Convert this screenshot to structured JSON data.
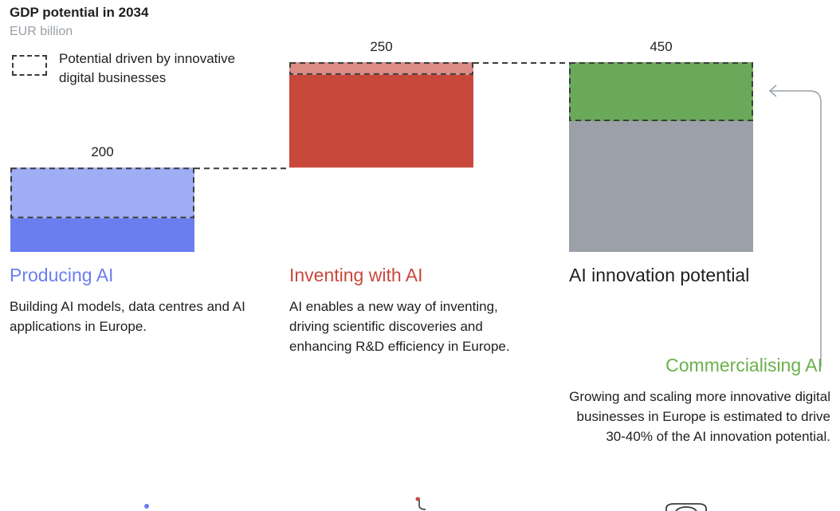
{
  "chart_data": {
    "type": "waterfall",
    "title": "GDP potential in 2034",
    "subtitle": "EUR billion",
    "legend": {
      "label": "Potential driven by innovative digital businesses",
      "style": "dashed-outline",
      "placement": "top-left"
    },
    "bars": [
      {
        "name": "Producing AI",
        "value_label": "200",
        "start": 0,
        "end": 200,
        "digital_portion": [
          80,
          200
        ],
        "color": "#6a7ef0",
        "digital_color": "#9fadf5"
      },
      {
        "name": "Inventing with AI",
        "value_label": "250",
        "start": 200,
        "end": 450,
        "digital_portion": [
          420,
          450
        ],
        "color": "#c9483c",
        "digital_color": "#dc8c84"
      },
      {
        "name": "AI innovation potential",
        "value_label": "450",
        "start": 0,
        "end": 450,
        "digital_portion": [
          310,
          450
        ],
        "color": "#9ca0a8",
        "digital_color": "#6aa95a"
      }
    ],
    "ylim": [
      0,
      450
    ]
  },
  "sections": {
    "producing": {
      "title": "Producing AI",
      "description": "Building AI models, data centres and AI applications in Europe."
    },
    "inventing": {
      "title": "Inventing with AI",
      "description": "AI enables a new way of inventing, driving scientific discoveries and enhancing R&D efficiency in Europe."
    },
    "potential": {
      "title": "AI innovation potential"
    },
    "commercialising": {
      "title": "Commercialising AI",
      "description": "Growing and scaling more innovative digital businesses in Europe is estimated to drive 30-40% of the AI innovation potential."
    }
  },
  "colors": {
    "producing": "#6a7ef0",
    "inventing": "#c9483c",
    "commercialising": "#6ab04c",
    "total": "#9ca0a8"
  }
}
